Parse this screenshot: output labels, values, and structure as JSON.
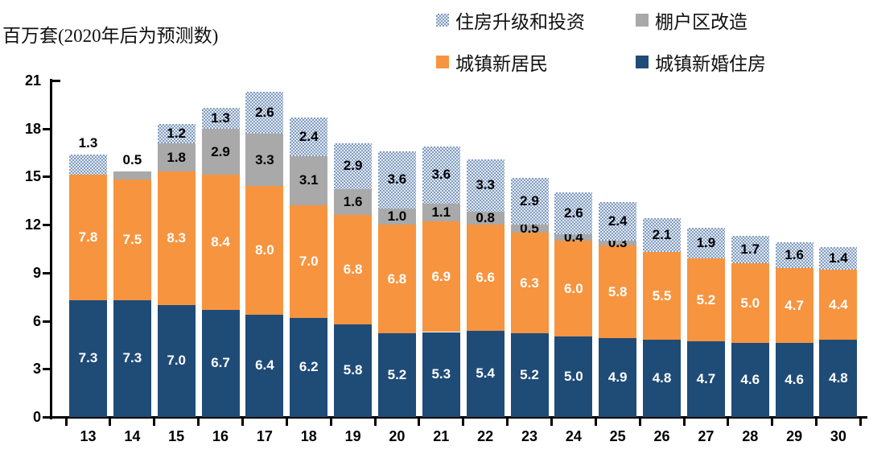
{
  "title": "百万套(2020年后为预测数)",
  "legend": {
    "items": [
      {
        "key": "upgrade-investment",
        "label": "住房升级和投资",
        "swatch": "pattern"
      },
      {
        "key": "shantytown-renovation",
        "label": "棚户区改造",
        "swatch": "gray"
      },
      {
        "key": "new-residents",
        "label": "城镇新居民",
        "swatch": "orange"
      },
      {
        "key": "newlywed-housing",
        "label": "城镇新婚住房",
        "swatch": "navy"
      }
    ]
  },
  "colors": {
    "navy": "#1F4B77",
    "orange": "#F7943F",
    "gray": "#A9A9A9",
    "pattern_dot": "#7E9AC1",
    "pattern_bg": "#E8EDF5",
    "axis": "#000000",
    "label_on_dark": "#FFFFFF",
    "label_on_light": "#000000"
  },
  "chart_data": {
    "type": "bar",
    "stacked": true,
    "title": "百万套(2020年后为预测数)",
    "categories": [
      "13",
      "14",
      "15",
      "16",
      "17",
      "18",
      "19",
      "20",
      "21",
      "22",
      "23",
      "24",
      "25",
      "26",
      "27",
      "28",
      "29",
      "30"
    ],
    "series": [
      {
        "key": "newlywed-housing",
        "name": "城镇新婚住房",
        "color_key": "navy",
        "label_color": "#FFFFFF",
        "values": [
          7.3,
          7.3,
          7.0,
          6.7,
          6.4,
          6.2,
          5.8,
          5.2,
          5.3,
          5.4,
          5.2,
          5.0,
          4.9,
          4.8,
          4.7,
          4.6,
          4.6,
          4.8
        ]
      },
      {
        "key": "new-residents",
        "name": "城镇新居民",
        "color_key": "orange",
        "label_color": "#FFFFFF",
        "values": [
          7.8,
          7.5,
          8.3,
          8.4,
          8.0,
          7.0,
          6.8,
          6.8,
          6.9,
          6.6,
          6.3,
          6.0,
          5.8,
          5.5,
          5.2,
          5.0,
          4.7,
          4.4
        ]
      },
      {
        "key": "shantytown-renovation",
        "name": "棚户区改造",
        "color_key": "gray",
        "label_color": "#000000",
        "values": [
          0,
          0.5,
          1.8,
          2.9,
          3.3,
          3.1,
          1.6,
          1.0,
          1.1,
          0.8,
          0.5,
          0.4,
          0.3,
          0,
          0,
          0,
          0,
          0
        ]
      },
      {
        "key": "upgrade-investment",
        "name": "住房升级和投资",
        "color_key": "pattern",
        "label_color": "#000000",
        "values": [
          1.3,
          0,
          1.2,
          1.3,
          2.6,
          2.4,
          2.9,
          3.6,
          3.6,
          3.3,
          2.9,
          2.6,
          2.4,
          2.1,
          1.9,
          1.7,
          1.6,
          1.4
        ]
      }
    ],
    "ylim": [
      0,
      21
    ],
    "y_ticks": [
      0,
      3,
      6,
      9,
      12,
      15,
      18,
      21
    ],
    "xlabel": "",
    "ylabel": "百万套",
    "grid": false,
    "legend_position": "top-right",
    "value_label_decimals": 1,
    "outside_top_label_categories": [
      "13",
      "14"
    ]
  }
}
